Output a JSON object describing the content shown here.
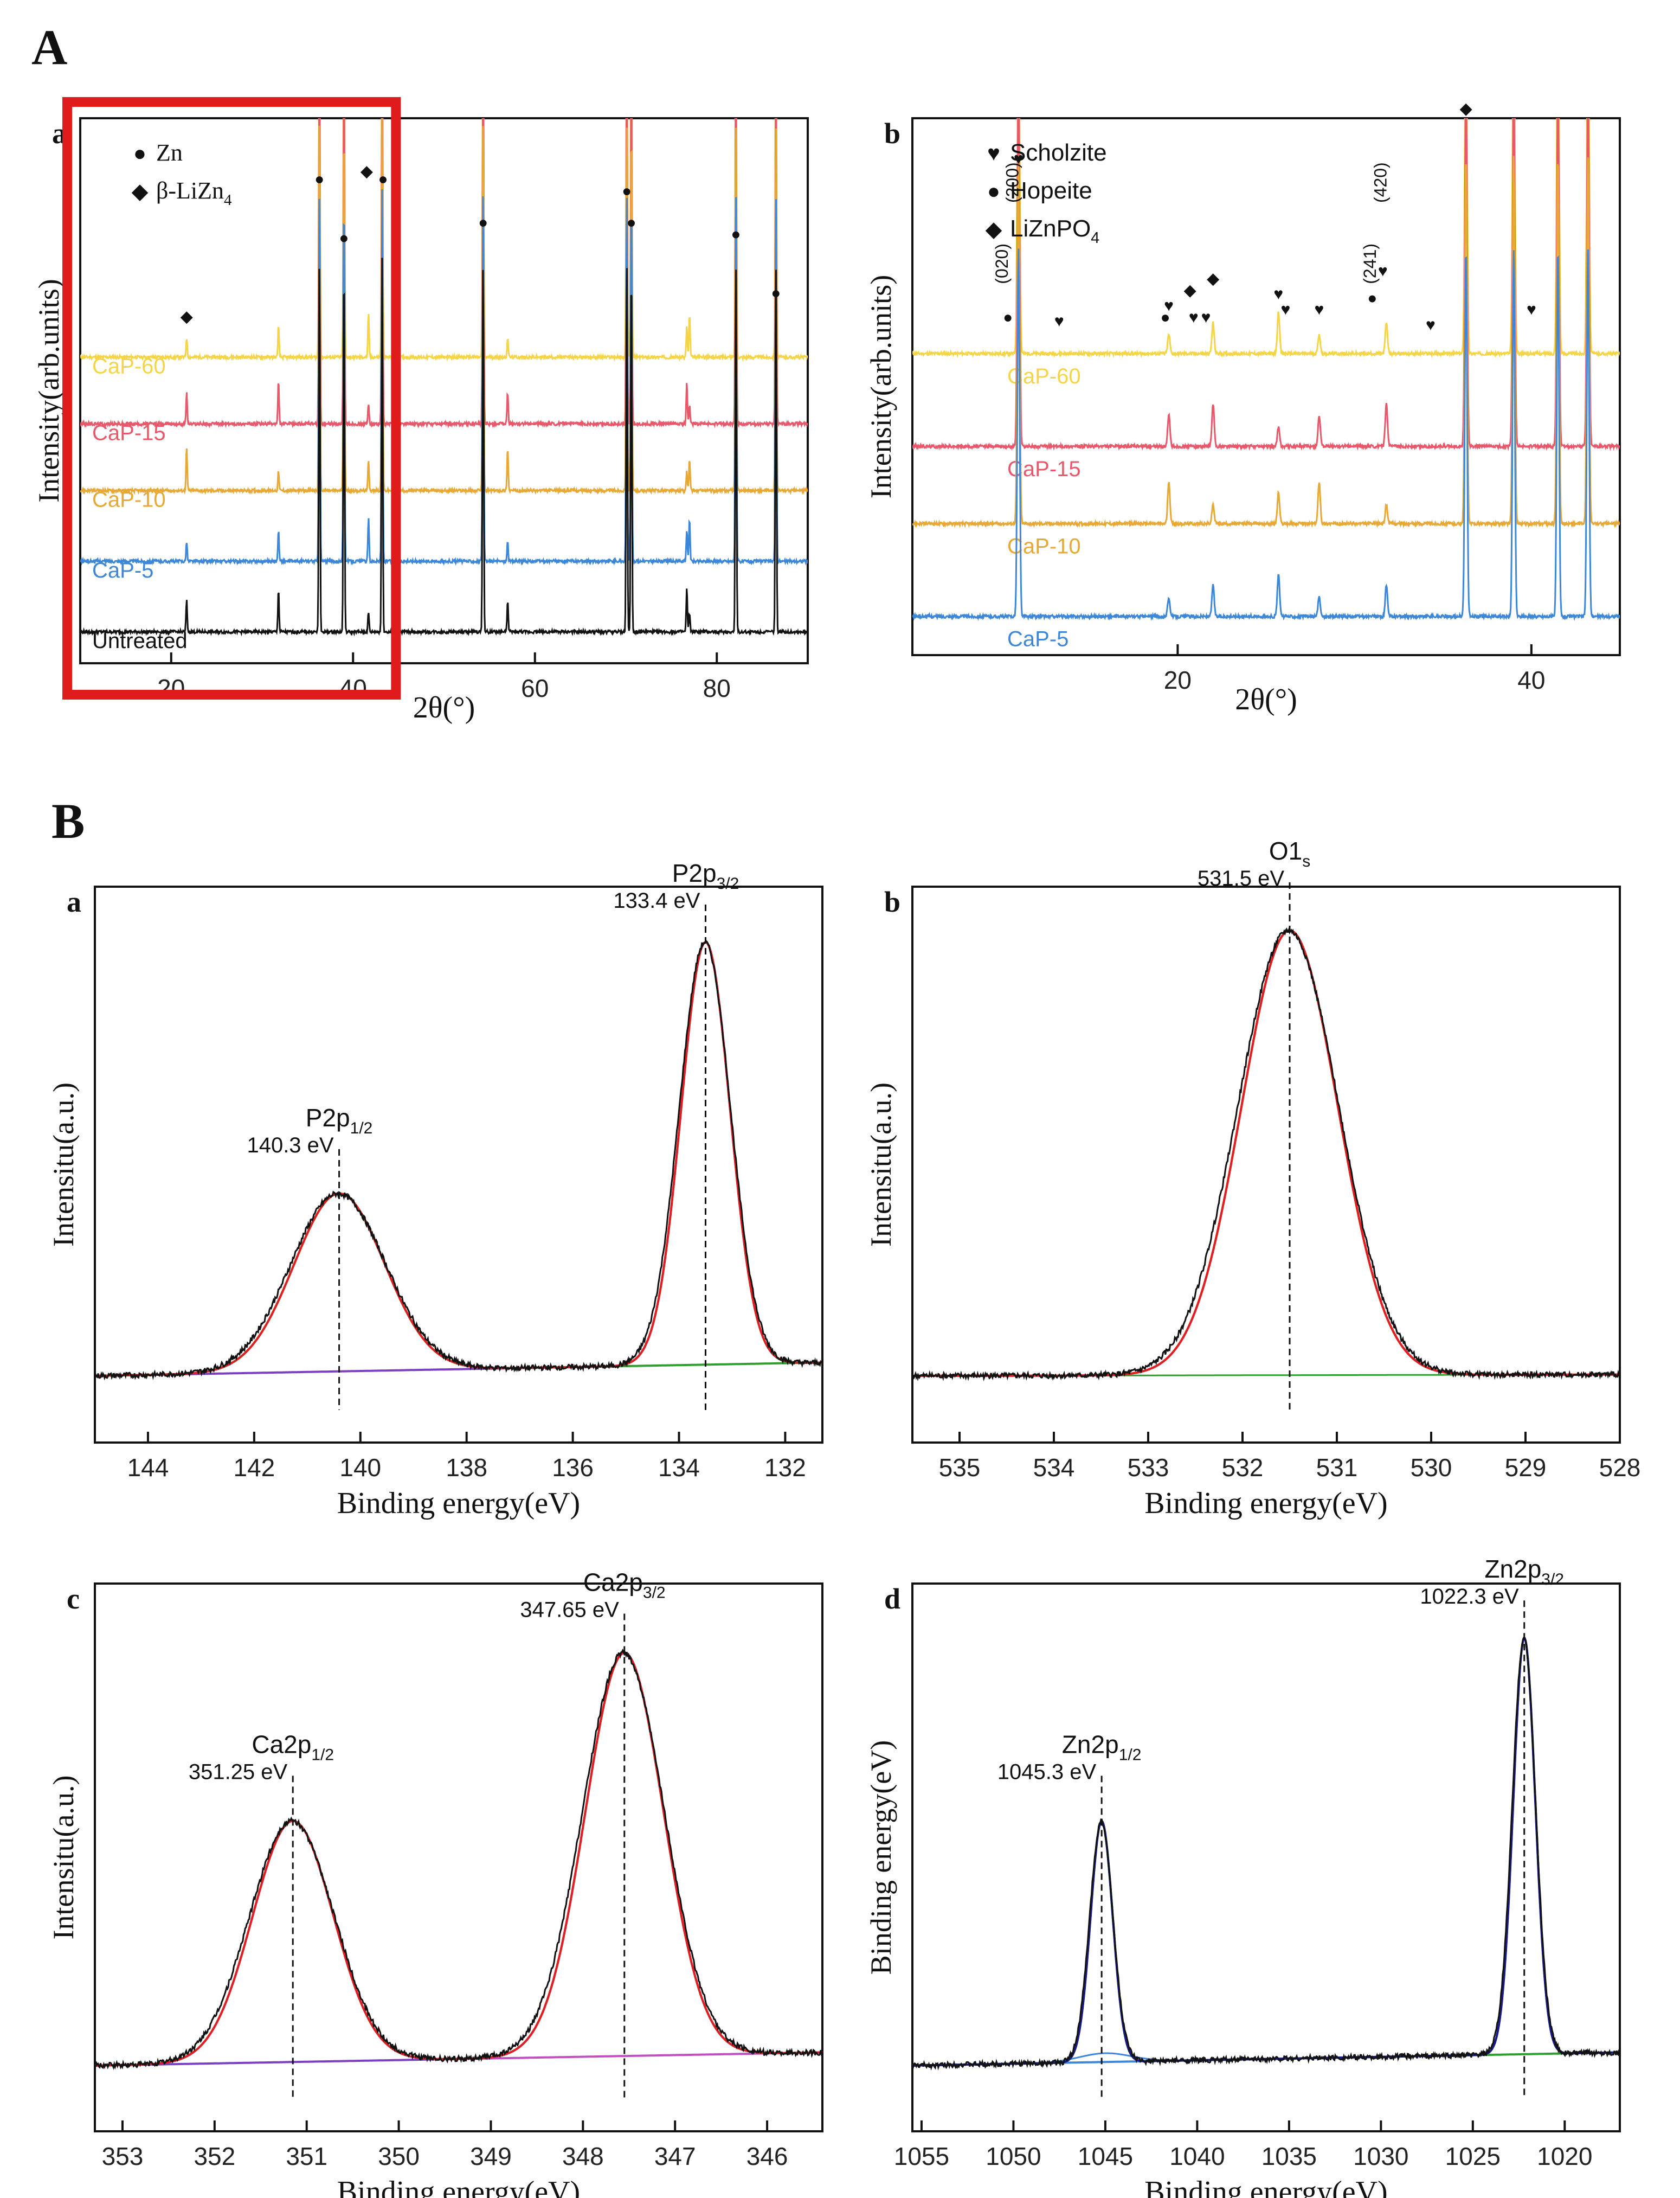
{
  "section_labels": {
    "A": "A",
    "B": "B"
  },
  "chart_data": [
    {
      "id": "Aa",
      "type": "line",
      "panel_label": "a",
      "xlabel": "2θ(°)",
      "ylabel": "Intensity(arb.units)",
      "xlim": [
        10,
        90
      ],
      "xticks": [
        20,
        40,
        60,
        80
      ],
      "legend": [
        {
          "symbol": "●",
          "text": "Zn"
        },
        {
          "symbol": "◆",
          "text": "β-LiZn",
          "sub": "4"
        }
      ],
      "highlight_box_x": [
        10,
        44
      ],
      "series": [
        {
          "name": "CaP-60",
          "color": "#F5D547",
          "baseline": 0.78
        },
        {
          "name": "CaP-15",
          "color": "#E8586A",
          "baseline": 0.61
        },
        {
          "name": "CaP-10",
          "color": "#E8A835",
          "baseline": 0.44
        },
        {
          "name": "CaP-5",
          "color": "#3C87D8",
          "baseline": 0.26
        },
        {
          "name": "Untreated",
          "color": "#111111",
          "baseline": 0.08
        }
      ],
      "strong_peaks": [
        36.3,
        39.0,
        43.2,
        54.3,
        70.1,
        70.6,
        82.1,
        86.5
      ],
      "weak_peaks": [
        21.7,
        31.8,
        41.7,
        57.0,
        76.7,
        77.0
      ],
      "markers": [
        {
          "symbol": "◆",
          "x": 21.7,
          "y": 0.87
        },
        {
          "symbol": "●",
          "x": 36.3,
          "y": 1.22
        },
        {
          "symbol": "●",
          "x": 39.0,
          "y": 1.07
        },
        {
          "symbol": "◆",
          "x": 41.5,
          "y": 1.24
        },
        {
          "symbol": "●",
          "x": 43.3,
          "y": 1.22
        },
        {
          "symbol": "●",
          "x": 54.3,
          "y": 1.11
        },
        {
          "symbol": "●",
          "x": 70.1,
          "y": 1.19
        },
        {
          "symbol": "●",
          "x": 70.6,
          "y": 1.11
        },
        {
          "symbol": "●",
          "x": 82.1,
          "y": 1.08
        },
        {
          "symbol": "●",
          "x": 86.5,
          "y": 0.93
        }
      ]
    },
    {
      "id": "Ab",
      "type": "line",
      "panel_label": "b",
      "xlabel": "2θ(°)",
      "ylabel": "Intensity(arb.units)",
      "xlim": [
        5,
        45
      ],
      "xticks": [
        20,
        40
      ],
      "legend": [
        {
          "symbol": "♥",
          "text": "Scholzite"
        },
        {
          "symbol": "●",
          "text": "Hopeite"
        },
        {
          "symbol": "◆",
          "text": "LiZnPO",
          "sub": "4"
        }
      ],
      "series": [
        {
          "name": "CaP-60",
          "color": "#F5D547",
          "baseline": 0.78
        },
        {
          "name": "CaP-15",
          "color": "#E8586A",
          "baseline": 0.54
        },
        {
          "name": "CaP-10",
          "color": "#E8A835",
          "baseline": 0.34
        },
        {
          "name": "CaP-5",
          "color": "#3C87D8",
          "baseline": 0.1
        }
      ],
      "strong_peaks": [
        11.0,
        36.3,
        39.0,
        41.5,
        43.2
      ],
      "weak_peaks": [
        19.5,
        22.0,
        25.7,
        28.0,
        31.8
      ],
      "miller_labels": [
        {
          "text": "(020)",
          "x": 10.4
        },
        {
          "text": "(200)",
          "x": 11.0
        },
        {
          "text": "(241)",
          "x": 31.2
        },
        {
          "text": "(420)",
          "x": 31.8
        }
      ],
      "markers": [
        {
          "symbol": "●",
          "x": 10.4,
          "y": 0.86
        },
        {
          "symbol": "♥",
          "x": 11.0,
          "y": 1.27
        },
        {
          "symbol": "♥",
          "x": 13.3,
          "y": 0.85
        },
        {
          "symbol": "●",
          "x": 19.3,
          "y": 0.86
        },
        {
          "symbol": "♥",
          "x": 19.5,
          "y": 0.89
        },
        {
          "symbol": "◆",
          "x": 20.7,
          "y": 0.93
        },
        {
          "symbol": "♥",
          "x": 20.9,
          "y": 0.86
        },
        {
          "symbol": "♥",
          "x": 21.6,
          "y": 0.86
        },
        {
          "symbol": "◆",
          "x": 22.0,
          "y": 0.96
        },
        {
          "symbol": "♥",
          "x": 25.7,
          "y": 0.92
        },
        {
          "symbol": "♥",
          "x": 26.1,
          "y": 0.88
        },
        {
          "symbol": "♥",
          "x": 28.0,
          "y": 0.88
        },
        {
          "symbol": "●",
          "x": 31.0,
          "y": 0.91
        },
        {
          "symbol": "♥",
          "x": 31.6,
          "y": 0.98
        },
        {
          "symbol": "♥",
          "x": 34.3,
          "y": 0.84
        },
        {
          "symbol": "◆",
          "x": 36.3,
          "y": 1.4
        },
        {
          "symbol": "♥",
          "x": 40.0,
          "y": 0.88
        }
      ]
    },
    {
      "id": "Ba",
      "type": "line",
      "panel_label": "a",
      "xlabel": "Binding energy(eV)",
      "ylabel": "Intensitu(a.u.)",
      "xlim": [
        145,
        131.3
      ],
      "reversed": true,
      "xticks": [
        144,
        142,
        140,
        138,
        136,
        134,
        132
      ],
      "peaks": [
        {
          "label": "P2p",
          "sub": "1/2",
          "energy_label": "140.3 eV",
          "center": 140.4,
          "height": 0.4,
          "width": 1.2,
          "fit_color": "#2E9E2E"
        },
        {
          "label": "P2p",
          "sub": "3/2",
          "energy_label": "133.4 eV",
          "center": 133.5,
          "height": 0.95,
          "width": 0.65,
          "fit_color": "#7B3FBF"
        }
      ],
      "background_color": "#3C87D8",
      "experimental_color": "#111111",
      "envelope_color": "#E02020"
    },
    {
      "id": "Bb",
      "type": "line",
      "panel_label": "b",
      "xlabel": "Binding energy(eV)",
      "ylabel": "Intensitu(a.u.)",
      "xlim": [
        535.5,
        528
      ],
      "reversed": true,
      "xticks": [
        535,
        534,
        533,
        532,
        531,
        530,
        529,
        528
      ],
      "peaks": [
        {
          "label": "O1",
          "sub": "s",
          "energy_label": "531.5 eV",
          "center": 531.5,
          "height": 1.0,
          "width": 0.72,
          "fit_color": "#E02020"
        }
      ],
      "background_color": "#2E9E2E",
      "experimental_color": "#111111",
      "envelope_color": "#E02020"
    },
    {
      "id": "Bc",
      "type": "line",
      "panel_label": "c",
      "xlabel": "Binding energy(eV)",
      "ylabel": "Intensitu(a.u.)",
      "xlim": [
        353.3,
        345.4
      ],
      "reversed": true,
      "xticks": [
        353,
        352,
        351,
        350,
        349,
        348,
        347,
        346
      ],
      "peaks": [
        {
          "label": "Ca2p",
          "sub": "1/2",
          "energy_label": "351.25 eV",
          "center": 351.15,
          "height": 0.55,
          "width": 0.62,
          "fit_color": "#C050C0"
        },
        {
          "label": "Ca2p",
          "sub": "3/2",
          "energy_label": "347.65 eV",
          "center": 347.55,
          "height": 0.92,
          "width": 0.6,
          "fit_color": "#7B3FBF"
        }
      ],
      "background_color": "#3C87D8",
      "experimental_color": "#111111",
      "envelope_color": "#E02020"
    },
    {
      "id": "Bd",
      "type": "line",
      "panel_label": "d",
      "xlabel": "Binding energy(eV)",
      "ylabel": "Binding energy(eV)",
      "xlim": [
        1055.5,
        1017
      ],
      "reversed": true,
      "xticks": [
        1055,
        1050,
        1045,
        1040,
        1035,
        1030,
        1025,
        1020
      ],
      "peaks": [
        {
          "label": "Zn2p",
          "sub": "1/2",
          "energy_label": "1045.3 eV",
          "center": 1045.2,
          "height": 0.55,
          "width": 0.85,
          "fit_color": "#2E9E2E"
        },
        {
          "label": "Zn2p",
          "sub": "3/2",
          "energy_label": "1022.3 eV",
          "center": 1022.2,
          "height": 0.95,
          "width": 0.85,
          "fit_color": "#3C87D8"
        }
      ],
      "background_color": "#3C87D8",
      "experimental_color": "#111111",
      "envelope_color": "#1a1a8a"
    }
  ]
}
